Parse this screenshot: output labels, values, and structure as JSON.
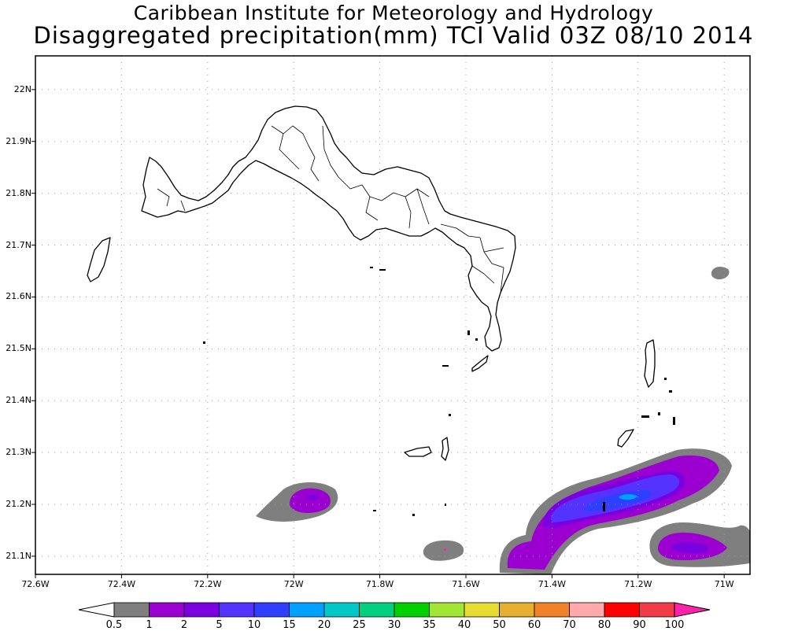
{
  "header": {
    "line1": "Caribbean Institute for Meteorology and Hydrology",
    "line2": "Disaggregated precipitation(mm) TCI Valid 03Z 08/10 2014"
  },
  "map": {
    "lon_range": [
      -72.6,
      -70.94
    ],
    "lat_range": [
      21.065,
      22.065
    ],
    "grid": true,
    "lat_ticks": [
      {
        "v": 22.0,
        "label": "22N"
      },
      {
        "v": 21.9,
        "label": "21.9N"
      },
      {
        "v": 21.8,
        "label": "21.8N"
      },
      {
        "v": 21.7,
        "label": "21.7N"
      },
      {
        "v": 21.6,
        "label": "21.6N"
      },
      {
        "v": 21.5,
        "label": "21.5N"
      },
      {
        "v": 21.4,
        "label": "21.4N"
      },
      {
        "v": 21.3,
        "label": "21.3N"
      },
      {
        "v": 21.2,
        "label": "21.2N"
      },
      {
        "v": 21.1,
        "label": "21.1N"
      }
    ],
    "lon_ticks": [
      {
        "v": -72.6,
        "label": "72.6W"
      },
      {
        "v": -72.4,
        "label": "72.4W"
      },
      {
        "v": -72.2,
        "label": "72.2W"
      },
      {
        "v": -72.0,
        "label": "72W"
      },
      {
        "v": -71.8,
        "label": "71.8W"
      },
      {
        "v": -71.6,
        "label": "71.6W"
      },
      {
        "v": -71.4,
        "label": "71.4W"
      },
      {
        "v": -71.2,
        "label": "71.2W"
      },
      {
        "v": -71.0,
        "label": "71W"
      }
    ]
  },
  "legend": {
    "levels": [
      "0.5",
      "1",
      "2",
      "5",
      "10",
      "15",
      "20",
      "25",
      "30",
      "35",
      "40",
      "50",
      "60",
      "70",
      "80",
      "90",
      "100"
    ],
    "colors": [
      "#ffffff",
      "#7f7f7f",
      "#9b00d0",
      "#7b00e0",
      "#5533ff",
      "#2e3fff",
      "#00a0ff",
      "#00c8c8",
      "#00d080",
      "#00d000",
      "#a0e632",
      "#e6dc32",
      "#e6af2d",
      "#f08228",
      "#ffaaaa",
      "#ff0000",
      "#f03c46",
      "#ff22aa"
    ]
  }
}
